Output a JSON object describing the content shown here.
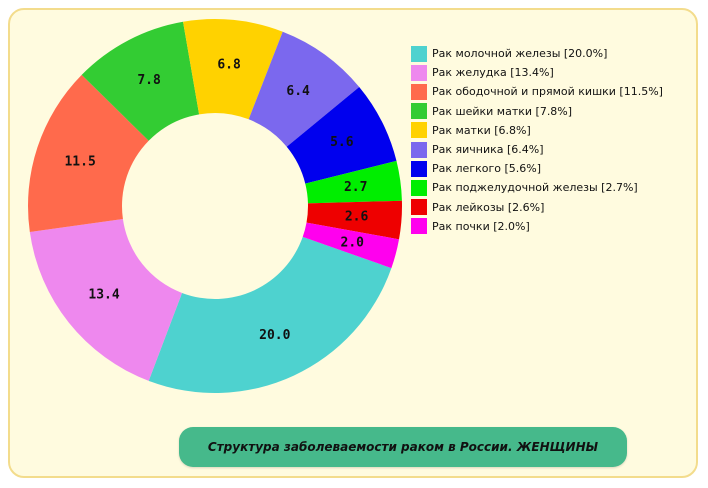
{
  "chart_data": {
    "type": "pie",
    "title": "Структура заболеваемости раком в России. ЖЕНЩИНЫ",
    "categories": [
      "Рак молочной железы",
      "Рак желудка",
      "Рак ободочной и прямой кишки",
      "Рак шейки матки",
      "Рак матки",
      "Рак яичника",
      "Рак легкого",
      "Рак поджелудочной железы",
      "Рак лейкозы",
      "Рак почки"
    ],
    "values": [
      20.0,
      13.4,
      11.5,
      7.8,
      6.8,
      6.4,
      5.6,
      2.7,
      2.6,
      2.0
    ],
    "value_labels": [
      "20.0",
      "13.4",
      "11.5",
      "7.8",
      "6.8",
      "6.4",
      "5.6",
      "2.7",
      "2.6",
      "2.0"
    ],
    "colors": [
      "#4ed2cf",
      "#ee88ee",
      "#ff6a4c",
      "#33cc33",
      "#ffd200",
      "#7b68ee",
      "#0000ee",
      "#00ee00",
      "#ee0000",
      "#ff00ee"
    ],
    "legend_placement": "right",
    "donut": true
  },
  "legend": {
    "items": [
      "Рак молочной железы  [20.0%]",
      "Рак желудка [13.4%]",
      "Рак ободочной и прямой кишки [11.5%]",
      "Рак шейки матки [7.8%]",
      "Рак матки  [6.8%]",
      "Рак яичника [6.4%]",
      "Рак легкого [5.6%]",
      "Рак поджелудочной железы [2.7%]",
      "Рак лейкозы [2.6%]",
      "Рак почки [2.0%]"
    ]
  },
  "caption": {
    "text": "Структура заболеваемости раком в России. ЖЕНЩИНЫ"
  },
  "colors": {
    "panel_bg": "#fffbdf",
    "panel_border": "#f3dc8c",
    "caption_bg": "#46b98b"
  }
}
